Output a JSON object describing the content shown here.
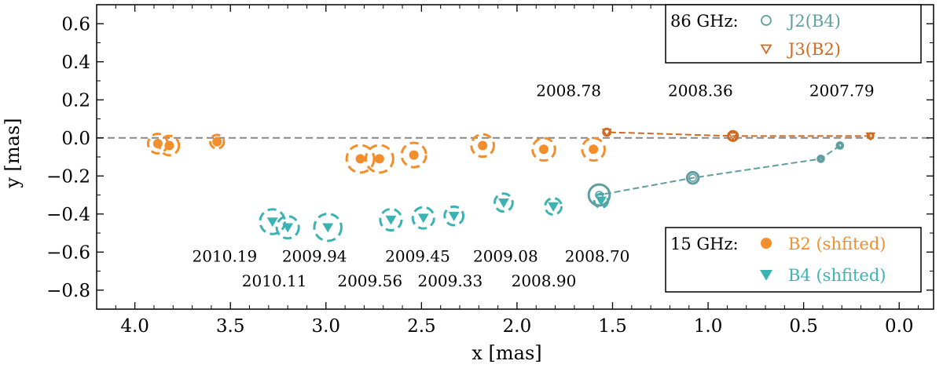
{
  "chart_data": {
    "type": "scatter",
    "xlabel": "x [mas]",
    "ylabel": "y [mas]",
    "xlim": [
      4.2,
      -0.18
    ],
    "ylim": [
      -0.9,
      0.7
    ],
    "xticks": [
      4.0,
      3.5,
      3.0,
      2.5,
      2.0,
      1.5,
      1.0,
      0.5,
      0.0
    ],
    "xtick_labels": [
      "4.0",
      "3.5",
      "3.0",
      "2.5",
      "2.0",
      "1.5",
      "1.0",
      "0.5",
      "0.0"
    ],
    "yticks": [
      0.6,
      0.4,
      0.2,
      0.0,
      -0.2,
      -0.4,
      -0.6,
      -0.8
    ],
    "ytick_labels": [
      "0.6",
      "0.4",
      "0.2",
      "0.0",
      "−0.2",
      "−0.4",
      "−0.6",
      "−0.8"
    ],
    "reference_line_y": 0.0,
    "grid": false,
    "colors": {
      "j2": "#5f9ea0",
      "j3": "#d2691e",
      "b2": "#f28e2b",
      "b4": "#3bb3b3",
      "refline": "#888888"
    },
    "legends": [
      {
        "position": "top-right",
        "title": "86 GHz:",
        "entries": [
          {
            "label": "J2(B4)",
            "marker": "open-circle",
            "color": "#5f9ea0"
          },
          {
            "label": "J3(B2)",
            "marker": "open-triangle",
            "color": "#d2691e"
          }
        ]
      },
      {
        "position": "bottom-right",
        "title": "15 GHz:",
        "entries": [
          {
            "label": "B2 (shfited)",
            "marker": "filled-circle",
            "color": "#f28e2b"
          },
          {
            "label": "B4 (shfited)",
            "marker": "filled-triangle",
            "color": "#3bb3b3"
          }
        ]
      }
    ],
    "series": [
      {
        "name": "J2(B4)",
        "marker": "open-circle",
        "points": [
          {
            "x": 0.31,
            "y": -0.04,
            "size": 0.012
          },
          {
            "x": 0.41,
            "y": -0.11,
            "size": 0.012
          },
          {
            "x": 1.08,
            "y": -0.21,
            "size": 0.03
          },
          {
            "x": 1.57,
            "y": -0.3,
            "size": 0.055
          }
        ]
      },
      {
        "name": "J3(B2)",
        "marker": "open-triangle",
        "points": [
          {
            "x": 0.15,
            "y": 0.01,
            "size": 0.014
          },
          {
            "x": 0.87,
            "y": 0.01,
            "size": 0.025
          },
          {
            "x": 1.53,
            "y": 0.03,
            "size": 0.018
          }
        ]
      },
      {
        "name": "B2 (shfited)",
        "marker": "filled-circle",
        "points": [
          {
            "x": 1.6,
            "y": -0.06,
            "size": 0.059
          },
          {
            "x": 1.86,
            "y": -0.06,
            "size": 0.059
          },
          {
            "x": 2.18,
            "y": -0.04,
            "size": 0.059
          },
          {
            "x": 2.54,
            "y": -0.09,
            "size": 0.064
          },
          {
            "x": 2.72,
            "y": -0.11,
            "size": 0.072
          },
          {
            "x": 2.82,
            "y": -0.11,
            "size": 0.072
          },
          {
            "x": 3.57,
            "y": -0.02,
            "size": 0.036
          },
          {
            "x": 3.82,
            "y": -0.04,
            "size": 0.051
          },
          {
            "x": 3.88,
            "y": -0.03,
            "size": 0.051
          }
        ]
      },
      {
        "name": "B4 (shfited)",
        "marker": "filled-triangle",
        "points": [
          {
            "x": 1.56,
            "y": -0.33,
            "size": 0.036
          },
          {
            "x": 1.81,
            "y": -0.36,
            "size": 0.043
          },
          {
            "x": 2.07,
            "y": -0.34,
            "size": 0.047
          },
          {
            "x": 2.33,
            "y": -0.41,
            "size": 0.049
          },
          {
            "x": 2.49,
            "y": -0.42,
            "size": 0.056
          },
          {
            "x": 2.66,
            "y": -0.43,
            "size": 0.056
          },
          {
            "x": 2.99,
            "y": -0.47,
            "size": 0.071
          },
          {
            "x": 3.2,
            "y": -0.47,
            "size": 0.058
          },
          {
            "x": 3.28,
            "y": -0.44,
            "size": 0.065
          }
        ]
      }
    ],
    "annotations": [
      {
        "text": "2008.78",
        "x": 1.73,
        "y": 0.22
      },
      {
        "text": "2008.36",
        "x": 1.04,
        "y": 0.22
      },
      {
        "text": "2007.79",
        "x": 0.3,
        "y": 0.22
      },
      {
        "text": "2010.19",
        "x": 3.53,
        "y": -0.65
      },
      {
        "text": "2009.94",
        "x": 3.06,
        "y": -0.65
      },
      {
        "text": "2009.45",
        "x": 2.52,
        "y": -0.65
      },
      {
        "text": "2009.08",
        "x": 2.06,
        "y": -0.65
      },
      {
        "text": "2008.70",
        "x": 1.58,
        "y": -0.65
      },
      {
        "text": "2010.11",
        "x": 3.27,
        "y": -0.78
      },
      {
        "text": "2009.56",
        "x": 2.77,
        "y": -0.78
      },
      {
        "text": "2009.33",
        "x": 2.35,
        "y": -0.78
      },
      {
        "text": "2008.90",
        "x": 1.86,
        "y": -0.78
      }
    ]
  }
}
